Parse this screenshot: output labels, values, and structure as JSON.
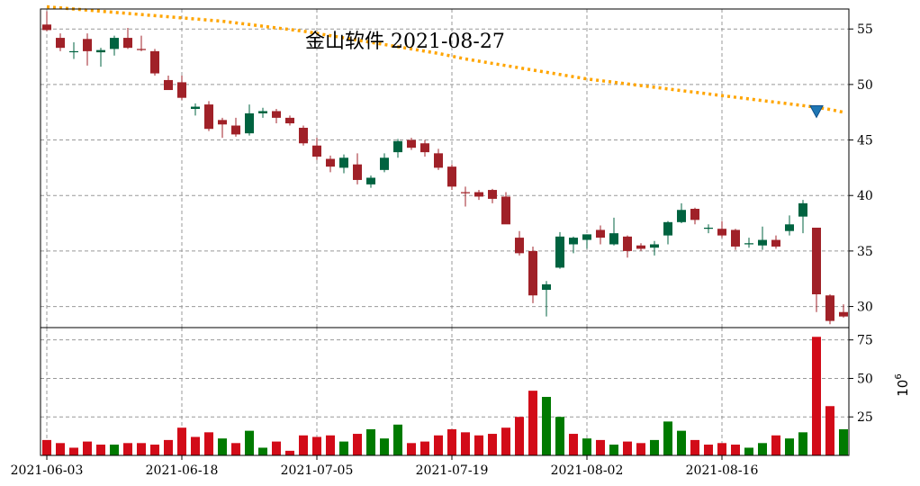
{
  "chart_data": [
    {
      "type": "candlestick",
      "title": "金山软件 2021-08-27",
      "dates": [
        "2021-06-03",
        "2021-06-04",
        "2021-06-07",
        "2021-06-08",
        "2021-06-09",
        "2021-06-10",
        "2021-06-11",
        "2021-06-15",
        "2021-06-16",
        "2021-06-17",
        "2021-06-18",
        "2021-06-21",
        "2021-06-22",
        "2021-06-23",
        "2021-06-24",
        "2021-06-25",
        "2021-06-28",
        "2021-06-29",
        "2021-06-30",
        "2021-07-02",
        "2021-07-05",
        "2021-07-06",
        "2021-07-07",
        "2021-07-08",
        "2021-07-09",
        "2021-07-12",
        "2021-07-13",
        "2021-07-14",
        "2021-07-15",
        "2021-07-16",
        "2021-07-19",
        "2021-07-20",
        "2021-07-21",
        "2021-07-22",
        "2021-07-23",
        "2021-07-26",
        "2021-07-27",
        "2021-07-28",
        "2021-07-29",
        "2021-07-30",
        "2021-08-02",
        "2021-08-03",
        "2021-08-04",
        "2021-08-05",
        "2021-08-06",
        "2021-08-09",
        "2021-08-10",
        "2021-08-11",
        "2021-08-12",
        "2021-08-13",
        "2021-08-16",
        "2021-08-17",
        "2021-08-18",
        "2021-08-19",
        "2021-08-20",
        "2021-08-23",
        "2021-08-24",
        "2021-08-25",
        "2021-08-26",
        "2021-08-27"
      ],
      "x_tick_labels": [
        "2021-06-03",
        "2021-06-18",
        "2021-07-05",
        "2021-07-19",
        "2021-08-02",
        "2021-08-16"
      ],
      "ohlc": [
        [
          55.4,
          56.6,
          54.8,
          54.9
        ],
        [
          54.2,
          54.6,
          53.0,
          53.3
        ],
        [
          53.0,
          53.8,
          52.3,
          53.0
        ],
        [
          54.1,
          54.6,
          51.7,
          53.0
        ],
        [
          52.9,
          53.3,
          51.6,
          53.1
        ],
        [
          53.2,
          54.4,
          52.6,
          54.2
        ],
        [
          54.2,
          55.1,
          53.2,
          53.3
        ],
        [
          53.2,
          54.4,
          53.0,
          53.1
        ],
        [
          53.0,
          53.2,
          50.8,
          51.0
        ],
        [
          50.4,
          50.8,
          49.6,
          49.5
        ],
        [
          50.2,
          50.8,
          48.6,
          48.8
        ],
        [
          47.8,
          48.3,
          47.2,
          48.0
        ],
        [
          48.2,
          48.5,
          45.8,
          46.0
        ],
        [
          46.8,
          47.0,
          45.2,
          46.4
        ],
        [
          46.3,
          47.0,
          45.3,
          45.5
        ],
        [
          45.6,
          48.2,
          45.4,
          47.4
        ],
        [
          47.4,
          47.9,
          47.0,
          47.6
        ],
        [
          47.6,
          47.8,
          46.5,
          47.0
        ],
        [
          47.0,
          47.2,
          46.3,
          46.5
        ],
        [
          46.1,
          46.3,
          44.5,
          44.7
        ],
        [
          44.5,
          45.2,
          43.2,
          43.5
        ],
        [
          43.3,
          43.6,
          42.1,
          42.6
        ],
        [
          42.5,
          43.7,
          42.0,
          43.4
        ],
        [
          42.8,
          43.8,
          41.0,
          41.4
        ],
        [
          41.0,
          41.8,
          40.7,
          41.6
        ],
        [
          42.3,
          43.8,
          42.1,
          43.4
        ],
        [
          43.9,
          45.1,
          43.4,
          44.9
        ],
        [
          45.0,
          45.2,
          44.1,
          44.3
        ],
        [
          44.7,
          45.0,
          43.5,
          43.9
        ],
        [
          43.8,
          44.2,
          42.3,
          42.5
        ],
        [
          42.6,
          42.8,
          40.5,
          40.8
        ],
        [
          40.3,
          40.8,
          39.0,
          40.2
        ],
        [
          40.3,
          40.5,
          39.6,
          39.9
        ],
        [
          40.5,
          40.6,
          39.3,
          39.7
        ],
        [
          39.9,
          40.3,
          37.5,
          37.4
        ],
        [
          36.2,
          36.8,
          34.6,
          34.8
        ],
        [
          35.0,
          35.4,
          30.3,
          31.0
        ],
        [
          31.5,
          32.3,
          29.1,
          32.0
        ],
        [
          33.5,
          36.7,
          33.4,
          36.3
        ],
        [
          35.6,
          36.3,
          34.8,
          36.2
        ],
        [
          36.0,
          36.5,
          35.2,
          36.5
        ],
        [
          36.9,
          37.3,
          35.6,
          36.2
        ],
        [
          35.6,
          38.0,
          35.5,
          36.6
        ],
        [
          36.3,
          36.4,
          34.4,
          35.0
        ],
        [
          35.5,
          35.7,
          35.0,
          35.2
        ],
        [
          35.3,
          35.9,
          34.6,
          35.6
        ],
        [
          36.4,
          37.7,
          35.6,
          37.6
        ],
        [
          37.6,
          39.3,
          37.5,
          38.7
        ],
        [
          38.8,
          38.9,
          37.4,
          37.8
        ],
        [
          37.0,
          37.4,
          36.6,
          37.1
        ],
        [
          37.0,
          37.7,
          36.2,
          36.4
        ],
        [
          36.9,
          37.0,
          35.1,
          35.4
        ],
        [
          35.6,
          36.2,
          35.3,
          35.7
        ],
        [
          35.5,
          37.2,
          35.1,
          36.0
        ],
        [
          36.0,
          36.4,
          35.2,
          35.4
        ],
        [
          36.8,
          38.2,
          36.4,
          37.4
        ],
        [
          38.1,
          39.6,
          36.6,
          39.3
        ],
        [
          37.1,
          37.1,
          29.5,
          31.1
        ],
        [
          31.0,
          31.1,
          28.4,
          28.7
        ],
        [
          29.5,
          30.2,
          29.0,
          29.1
        ]
      ],
      "y_ticks": [
        30,
        35,
        40,
        45,
        50,
        55
      ],
      "ylim": [
        28.1,
        56.8
      ],
      "ma_line": [
        57.0,
        56.9,
        56.8,
        56.7,
        56.6,
        56.5,
        56.4,
        56.3,
        56.2,
        56.1,
        56.0,
        55.9,
        55.8,
        55.7,
        55.55,
        55.4,
        55.25,
        55.1,
        54.95,
        54.8,
        54.6,
        54.4,
        54.2,
        54.0,
        53.8,
        53.6,
        53.4,
        53.2,
        53.0,
        52.8,
        52.55,
        52.3,
        52.1,
        51.9,
        51.7,
        51.5,
        51.3,
        51.1,
        50.9,
        50.7,
        50.5,
        50.35,
        50.2,
        50.05,
        49.9,
        49.75,
        49.6,
        49.45,
        49.3,
        49.15,
        49.0,
        48.85,
        48.7,
        48.55,
        48.4,
        48.25,
        48.1,
        47.95,
        47.75,
        47.5
      ],
      "ma_color": "#ffa500",
      "marker": {
        "shape": "down-triangle",
        "index": 57,
        "value": 47.6,
        "color": "#1f77b4"
      },
      "up_color": "#006340",
      "down_color": "#a02128",
      "grid": true
    },
    {
      "type": "bar",
      "unit_label": "10^6",
      "unit_base": "10",
      "unit_exponent": "6",
      "values": [
        10,
        8,
        5,
        9,
        7,
        7,
        8,
        8,
        7,
        10,
        18,
        12,
        15,
        11,
        8,
        16,
        5,
        9,
        3,
        13,
        12,
        13,
        9,
        14,
        17,
        11,
        20,
        8,
        9,
        13,
        17,
        15,
        13,
        14,
        18,
        25,
        42,
        38,
        25,
        14,
        11,
        10,
        7,
        9,
        8,
        10,
        22,
        16,
        10,
        7,
        8,
        7,
        5,
        8,
        13,
        11,
        15,
        77,
        32,
        17
      ],
      "colors": [
        "#d20b18",
        "#d20b18",
        "#d20b18",
        "#d20b18",
        "#d20b18",
        "#007a00",
        "#d20b18",
        "#d20b18",
        "#d20b18",
        "#d20b18",
        "#d20b18",
        "#d20b18",
        "#d20b18",
        "#007a00",
        "#d20b18",
        "#007a00",
        "#007a00",
        "#d20b18",
        "#d20b18",
        "#d20b18",
        "#d20b18",
        "#d20b18",
        "#007a00",
        "#d20b18",
        "#007a00",
        "#007a00",
        "#007a00",
        "#d20b18",
        "#d20b18",
        "#d20b18",
        "#d20b18",
        "#d20b18",
        "#d20b18",
        "#d20b18",
        "#d20b18",
        "#d20b18",
        "#d20b18",
        "#007a00",
        "#007a00",
        "#d20b18",
        "#007a00",
        "#d20b18",
        "#007a00",
        "#d20b18",
        "#d20b18",
        "#007a00",
        "#007a00",
        "#007a00",
        "#d20b18",
        "#d20b18",
        "#d20b18",
        "#d20b18",
        "#007a00",
        "#007a00",
        "#d20b18",
        "#007a00",
        "#007a00",
        "#d20b18",
        "#d20b18",
        "#007a00"
      ],
      "y_ticks": [
        25,
        50,
        75
      ],
      "ylim": [
        0,
        83
      ],
      "grid": true
    }
  ]
}
